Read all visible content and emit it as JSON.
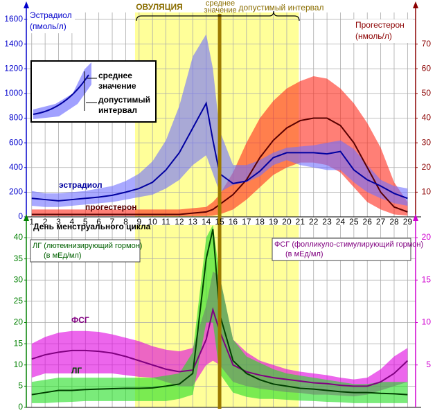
{
  "chart_data": [
    {
      "type": "line",
      "y_label": [
        "Эстрадиол",
        "(пмоль/л)"
      ],
      "y2_label": [
        "Прогестерон",
        "(нмоль/л)"
      ],
      "x": [
        1,
        2,
        3,
        4,
        5,
        6,
        7,
        8,
        9,
        10,
        11,
        12,
        13,
        14,
        14.5,
        15,
        16,
        17,
        18,
        19,
        20,
        21,
        22,
        23,
        24,
        25,
        26,
        27,
        28,
        29
      ],
      "xlim": [
        0.6,
        29.6
      ],
      "xticks": [
        1,
        2,
        3,
        4,
        5,
        6,
        7,
        8,
        9,
        10,
        11,
        12,
        13,
        14,
        15,
        16,
        17,
        18,
        19,
        20,
        21,
        22,
        23,
        24,
        25,
        26,
        27,
        28,
        29
      ],
      "ylim": [
        0,
        1600
      ],
      "yticks": [
        0,
        200,
        400,
        600,
        800,
        1000,
        1200,
        1400,
        1600
      ],
      "y2lim": [
        0,
        80
      ],
      "y2ticks": [
        10,
        20,
        30,
        40,
        50,
        60,
        70
      ],
      "grid": true,
      "axis_color": "#0000cc",
      "axis2_color": "#8b0000",
      "ovulation": {
        "label": "ОВУЛЯЦИЯ",
        "range": [
          8.7,
          20.9
        ],
        "mean": 15,
        "mean_label": [
          "среднее",
          "значение"
        ],
        "range_label": "допустимый интервал",
        "color": "#ffff99",
        "line_color": "#9c7a00"
      },
      "inset_legend": {
        "mean": [
          "среднее",
          "значение"
        ],
        "range": [
          "допустимый",
          "интервал"
        ]
      },
      "series": [
        {
          "name": "прогестерон",
          "axis": "y2",
          "color": "#5a0000",
          "band_color": "#ff2a1a",
          "values": [
            1,
            1,
            1,
            1,
            1,
            1,
            1,
            1,
            1,
            1,
            1,
            1,
            1.5,
            2,
            3,
            5,
            9,
            15,
            24,
            31,
            36,
            39,
            40,
            40,
            37,
            30,
            20,
            10,
            4,
            2
          ],
          "upper": [
            3,
            3,
            3,
            3,
            3,
            3,
            3,
            3,
            3,
            3,
            3,
            3,
            3.5,
            4,
            6,
            9,
            18,
            30,
            40,
            47,
            52,
            55,
            57,
            56,
            52,
            46,
            38,
            28,
            14,
            6
          ],
          "lower": [
            0.3,
            0.3,
            0.3,
            0.3,
            0.3,
            0.3,
            0.3,
            0.3,
            0.3,
            0.3,
            0.3,
            0.3,
            0.3,
            0.3,
            0.5,
            1,
            3,
            7,
            12,
            17,
            20,
            22,
            22,
            21,
            18,
            12,
            6,
            3,
            1,
            0.5
          ]
        },
        {
          "name": "эстрадиол",
          "color": "#0000a0",
          "band_color": "#6f6fff",
          "values": [
            150,
            140,
            130,
            140,
            150,
            160,
            175,
            200,
            230,
            280,
            380,
            520,
            720,
            920,
            620,
            350,
            270,
            290,
            370,
            480,
            520,
            520,
            520,
            510,
            530,
            380,
            300,
            250,
            190,
            150
          ],
          "upper": [
            210,
            190,
            190,
            200,
            210,
            230,
            250,
            290,
            350,
            450,
            620,
            900,
            1300,
            1480,
            1200,
            700,
            420,
            420,
            460,
            520,
            560,
            570,
            580,
            600,
            620,
            550,
            420,
            300,
            250,
            230
          ],
          "lower": [
            90,
            80,
            80,
            90,
            100,
            110,
            120,
            140,
            160,
            180,
            230,
            300,
            420,
            500,
            350,
            200,
            260,
            280,
            330,
            420,
            460,
            420,
            400,
            380,
            380,
            280,
            200,
            150,
            110,
            90
          ]
        }
      ]
    },
    {
      "type": "line",
      "x_label": "День менструального цикла",
      "y_label": [
        "ЛГ (лютеинизирующий гормон)",
        "(в мЕд/мл)"
      ],
      "y2_label": [
        "ФСГ (фолликуло-стимулирующий гормон)",
        "(в мЕд/мл)"
      ],
      "x": [
        1,
        2,
        3,
        4,
        5,
        6,
        7,
        8,
        9,
        10,
        11,
        12,
        13,
        14,
        14.5,
        15,
        16,
        17,
        18,
        19,
        20,
        21,
        22,
        23,
        24,
        25,
        26,
        27,
        28,
        29
      ],
      "xlim": [
        0.6,
        29.6
      ],
      "ylim": [
        0,
        40
      ],
      "yticks": [
        0,
        5,
        10,
        15,
        20,
        25,
        30,
        35,
        40
      ],
      "y2lim": [
        0,
        20
      ],
      "y2ticks": [
        5,
        10,
        15,
        20
      ],
      "grid": true,
      "axis_color": "#008000",
      "axis2_color": "#d000d0",
      "series": [
        {
          "name": "ФСГ",
          "axis": "y2",
          "color": "#800080",
          "band_color": "#e000e0",
          "values": [
            5.7,
            6.2,
            6.5,
            6.7,
            6.7,
            6.6,
            6.4,
            6,
            5.5,
            5,
            4.5,
            4.2,
            4.4,
            8,
            11.5,
            9,
            5,
            4.2,
            3.8,
            3.5,
            3.3,
            3.1,
            2.9,
            2.8,
            2.6,
            2.5,
            2.5,
            3,
            4,
            5.5
          ],
          "upper": [
            7.5,
            8.3,
            8.8,
            9,
            9,
            8.9,
            8.6,
            8.2,
            7.8,
            7.2,
            6.8,
            6.6,
            7,
            12,
            16,
            15.5,
            8,
            6.5,
            5.5,
            5,
            4.5,
            4.2,
            4,
            3.8,
            3.5,
            3.3,
            3.5,
            4.5,
            6,
            7
          ],
          "lower": [
            3.5,
            4,
            4,
            4,
            4,
            4,
            4,
            3.8,
            3.6,
            3.5,
            3,
            2.5,
            2.5,
            5,
            5.5,
            5,
            3,
            2.5,
            2.2,
            2,
            1.8,
            1.7,
            1.5,
            1.5,
            1.4,
            1.3,
            1.5,
            2,
            2.5,
            3
          ]
        },
        {
          "name": "ЛГ",
          "color": "#004000",
          "band_color": "#22dd22",
          "values": [
            3,
            3.5,
            4,
            4,
            4.2,
            4.3,
            4.4,
            4.5,
            4.5,
            4.6,
            5,
            5.5,
            8,
            35,
            42,
            22,
            11,
            8,
            6.5,
            5.5,
            5,
            4.5,
            4.3,
            4,
            3.7,
            3.5,
            3.5,
            3.3,
            3.2,
            3
          ],
          "upper": [
            6,
            6.5,
            7,
            7,
            7,
            7,
            7,
            7,
            7,
            7,
            7.5,
            8,
            13,
            40,
            43,
            31,
            16,
            12,
            10.5,
            9,
            8,
            7.5,
            7,
            6.5,
            6,
            5.5,
            5.5,
            6,
            6,
            6
          ],
          "lower": [
            1,
            1,
            1.2,
            1.3,
            1.5,
            1.5,
            1.5,
            1.5,
            1.5,
            1.5,
            1.5,
            2,
            3,
            20,
            20,
            8,
            3.5,
            2.5,
            2,
            2,
            1.8,
            1.6,
            1.5,
            1.3,
            1.2,
            1,
            1,
            1,
            1,
            1
          ]
        }
      ]
    }
  ]
}
